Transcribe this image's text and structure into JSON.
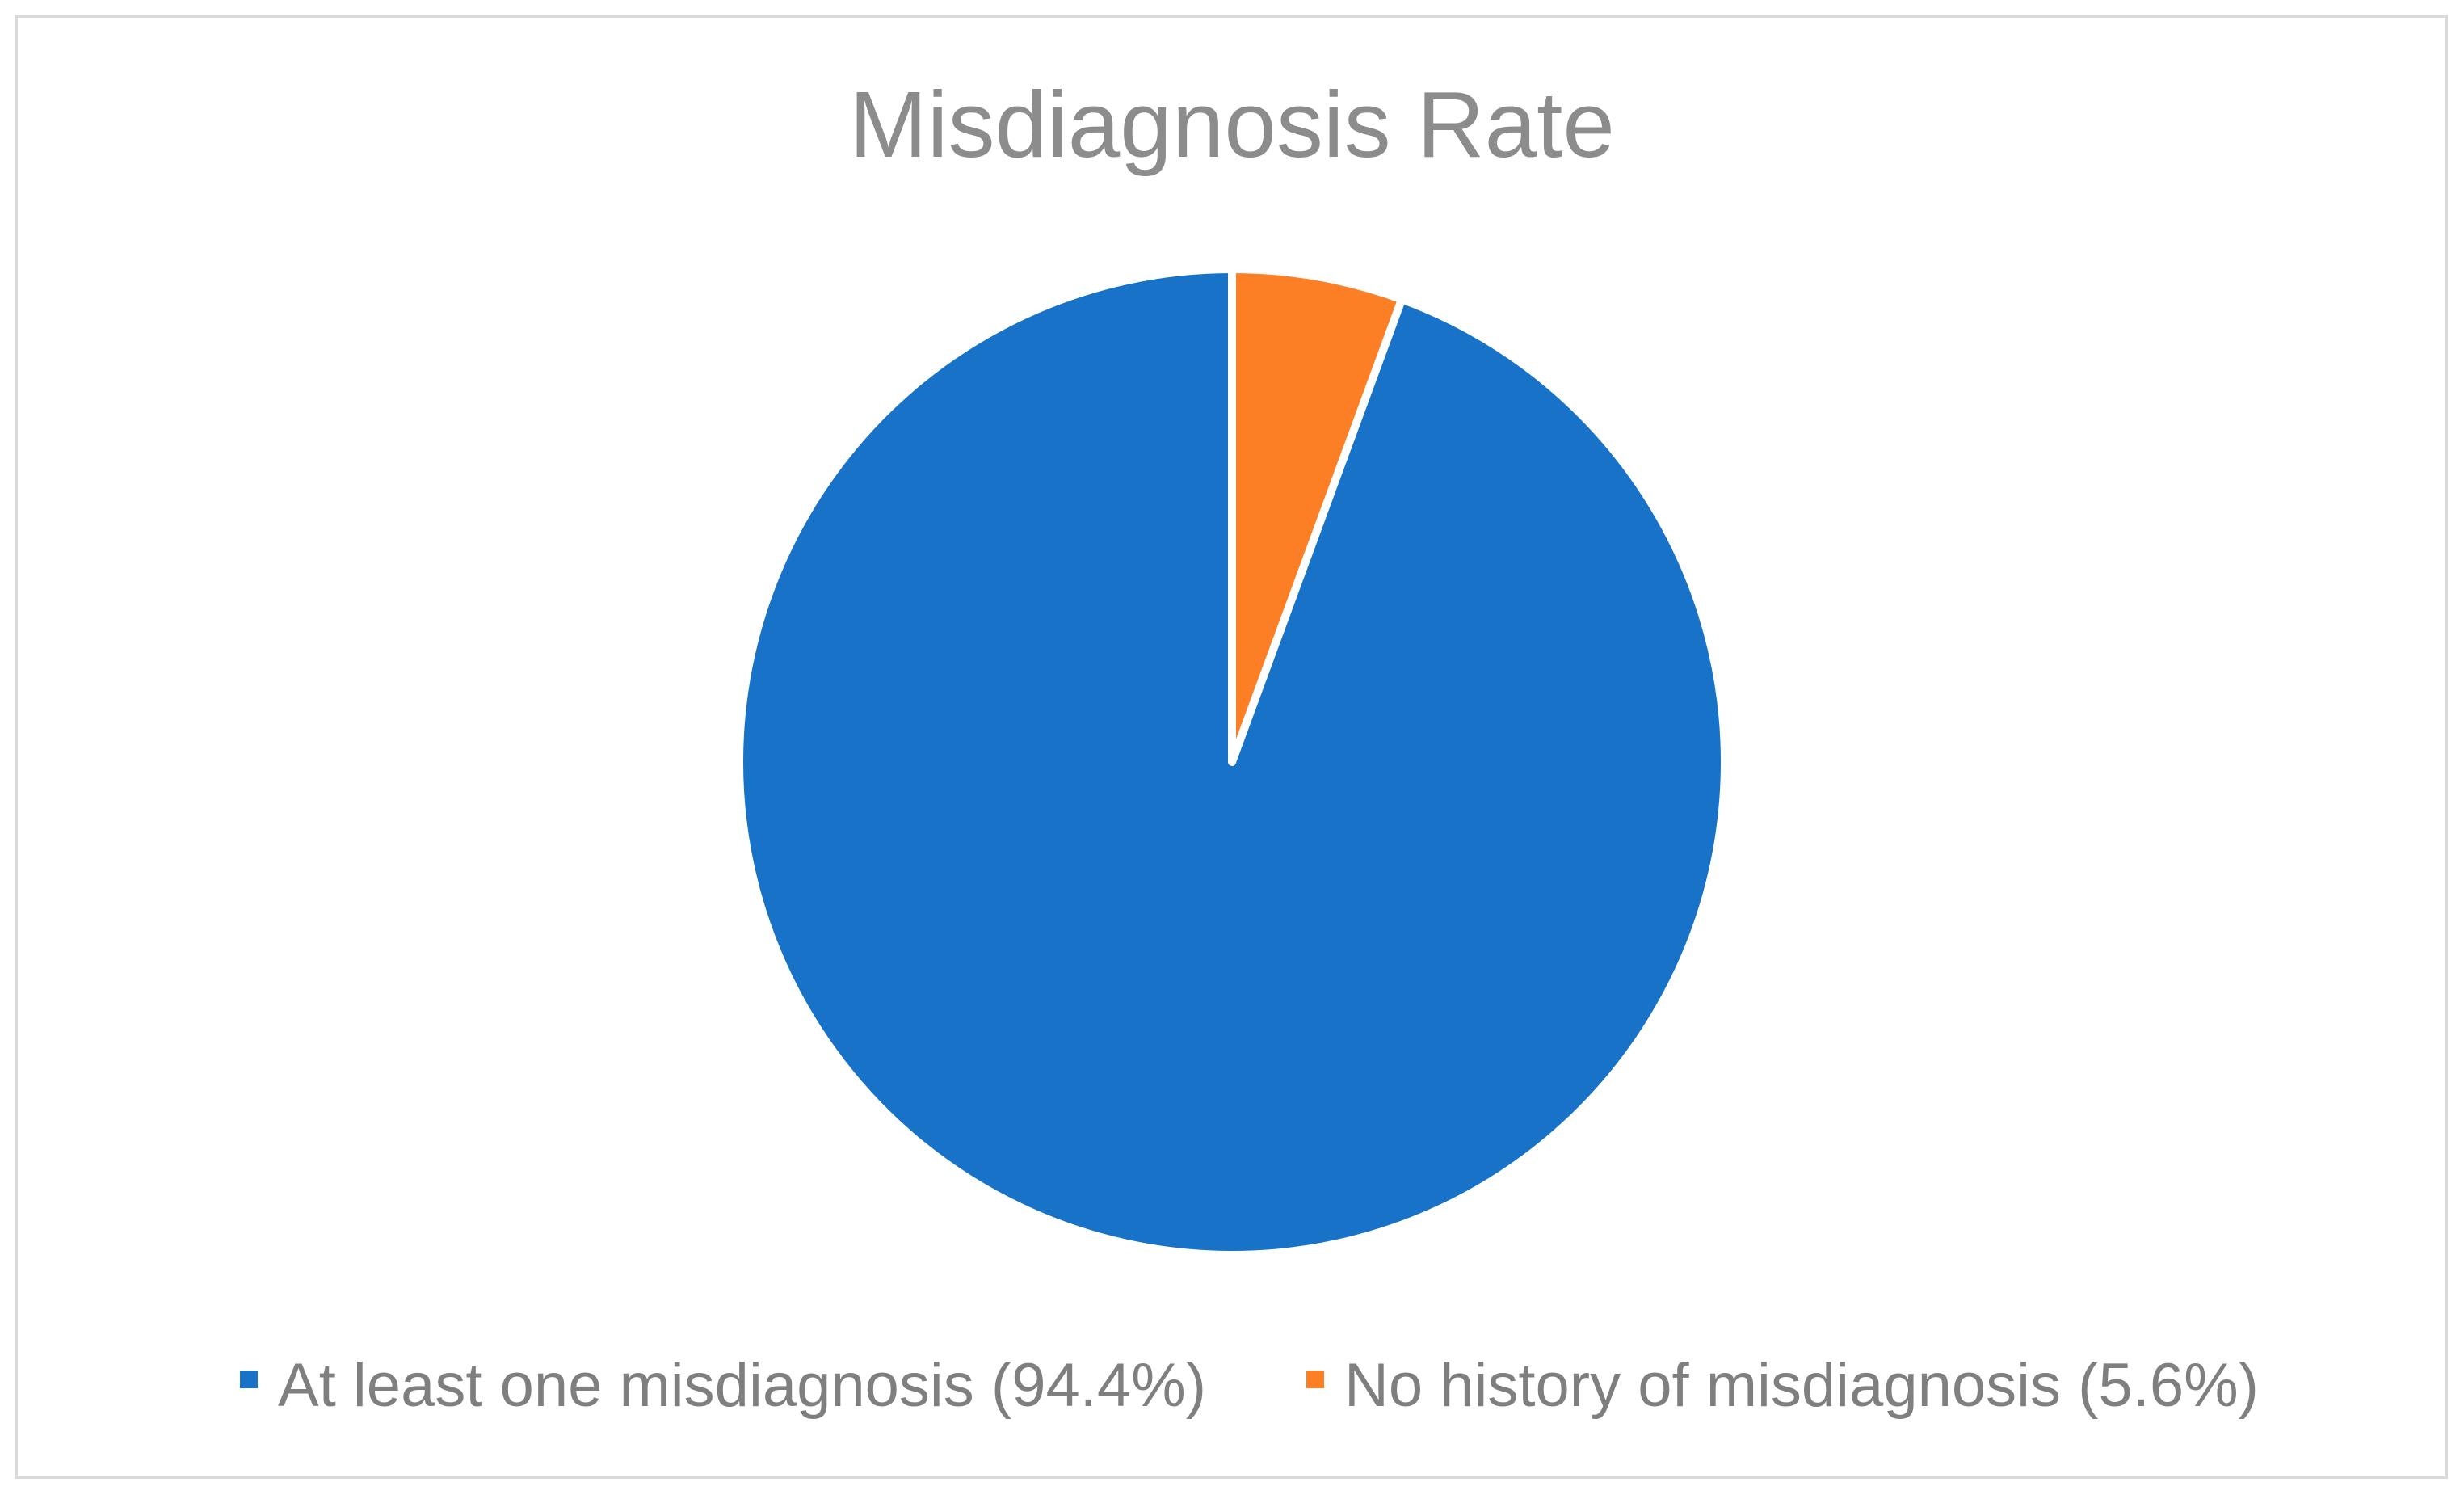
{
  "chart_data": {
    "type": "pie",
    "title": "Misdiagnosis Rate",
    "categories": [
      "At least one misdiagnosis (94.4%)",
      "No history of misdiagnosis (5.6%)"
    ],
    "values": [
      94.4,
      5.6
    ],
    "colors": [
      "#1873c8",
      "#fd7f25"
    ],
    "legend_position": "bottom",
    "start_angle": "top",
    "direction": "clockwise",
    "slice_order": [
      1,
      0
    ]
  }
}
